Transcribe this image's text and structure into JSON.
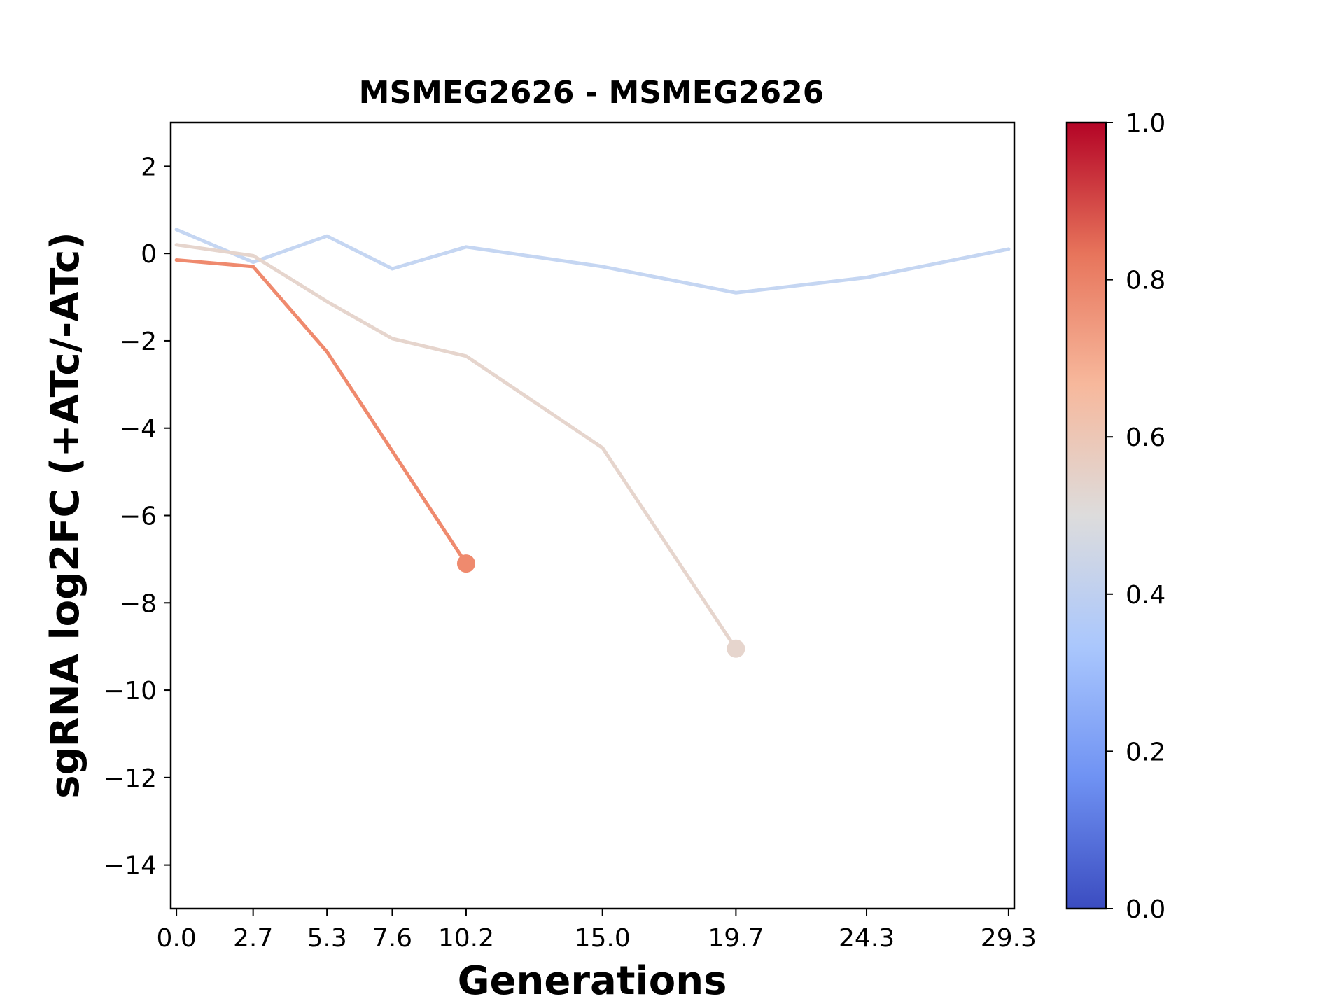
{
  "chart_data": {
    "type": "line",
    "title": "MSMEG2626 - MSMEG2626",
    "xlabel": "Generations",
    "ylabel": "sgRNA log2FC (+ATc/-ATc)",
    "xlim": [
      -0.2,
      29.5
    ],
    "ylim": [
      -15,
      3
    ],
    "x_ticks": [
      0.0,
      2.7,
      5.3,
      7.6,
      10.2,
      15.0,
      19.7,
      24.3,
      29.3
    ],
    "x_tick_labels": [
      "0.0",
      "2.7",
      "5.3",
      "7.6",
      "10.2",
      "15.0",
      "19.7",
      "24.3",
      "29.3"
    ],
    "y_ticks": [
      2,
      0,
      -2,
      -4,
      -6,
      -8,
      -10,
      -12,
      -14
    ],
    "y_tick_labels": [
      "2",
      "0",
      "−2",
      "−4",
      "−6",
      "−8",
      "−10",
      "−12",
      "−14"
    ],
    "grid": false,
    "series": [
      {
        "color": "#c5d6f2",
        "color_value": 0.42,
        "end_marker": false,
        "x": [
          0.0,
          2.7,
          5.3,
          7.6,
          10.2,
          15.0,
          19.7,
          24.3,
          29.3
        ],
        "y": [
          0.55,
          -0.2,
          0.4,
          -0.35,
          0.15,
          -0.3,
          -0.9,
          -0.55,
          0.1
        ]
      },
      {
        "color": "#e6d5cd",
        "color_value": 0.55,
        "end_marker": true,
        "x": [
          0.0,
          2.7,
          5.3,
          7.6,
          10.2,
          15.0,
          19.7
        ],
        "y": [
          0.2,
          -0.05,
          -1.1,
          -1.95,
          -2.35,
          -4.45,
          -9.05
        ]
      },
      {
        "color": "#ef8a6e",
        "color_value": 0.78,
        "end_marker": true,
        "x": [
          0.0,
          2.7,
          5.3,
          10.2
        ],
        "y": [
          -0.15,
          -0.3,
          -2.25,
          -7.1
        ]
      }
    ],
    "colorbar": {
      "colormap": "coolwarm",
      "range": [
        0.0,
        1.0
      ],
      "ticks": [
        0.0,
        0.2,
        0.4,
        0.6,
        0.8,
        1.0
      ],
      "tick_labels": [
        "0.0",
        "0.2",
        "0.4",
        "0.6",
        "0.8",
        "1.0"
      ],
      "stops": [
        "#3b4cc0",
        "#6f92f3",
        "#aac7fd",
        "#dddcdc",
        "#f7b89c",
        "#e7745b",
        "#b40426"
      ]
    }
  }
}
